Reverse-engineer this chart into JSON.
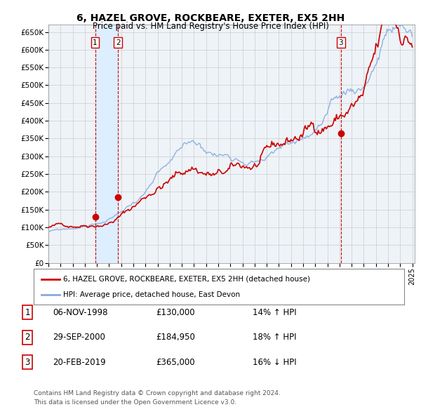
{
  "title": "6, HAZEL GROVE, ROCKBEARE, EXETER, EX5 2HH",
  "subtitle": "Price paid vs. HM Land Registry's House Price Index (HPI)",
  "ylabel_ticks": [
    "£0",
    "£50K",
    "£100K",
    "£150K",
    "£200K",
    "£250K",
    "£300K",
    "£350K",
    "£400K",
    "£450K",
    "£500K",
    "£550K",
    "£600K",
    "£650K"
  ],
  "ytick_values": [
    0,
    50000,
    100000,
    150000,
    200000,
    250000,
    300000,
    350000,
    400000,
    450000,
    500000,
    550000,
    600000,
    650000
  ],
  "ylim": [
    0,
    670000
  ],
  "xlim_start": 1995.0,
  "xlim_end": 2025.2,
  "sale1_x": 1998.85,
  "sale1_y": 130000,
  "sale2_x": 2000.75,
  "sale2_y": 184950,
  "sale3_x": 2019.12,
  "sale3_y": 365000,
  "sale1_date": "06-NOV-1998",
  "sale1_price": "£130,000",
  "sale1_hpi": "14% ↑ HPI",
  "sale2_date": "29-SEP-2000",
  "sale2_price": "£184,950",
  "sale2_hpi": "18% ↑ HPI",
  "sale3_date": "20-FEB-2019",
  "sale3_price": "£365,000",
  "sale3_hpi": "16% ↓ HPI",
  "legend_line1": "6, HAZEL GROVE, ROCKBEARE, EXETER, EX5 2HH (detached house)",
  "legend_line2": "HPI: Average price, detached house, East Devon",
  "footer1": "Contains HM Land Registry data © Crown copyright and database right 2024.",
  "footer2": "This data is licensed under the Open Government Licence v3.0.",
  "sale_color": "#cc0000",
  "hpi_color": "#88aadd",
  "shade_color": "#ddeeff",
  "bg_color": "#ffffff",
  "plot_bg": "#eef3f8",
  "grid_color": "#cccccc",
  "vline_color": "#cc0000"
}
